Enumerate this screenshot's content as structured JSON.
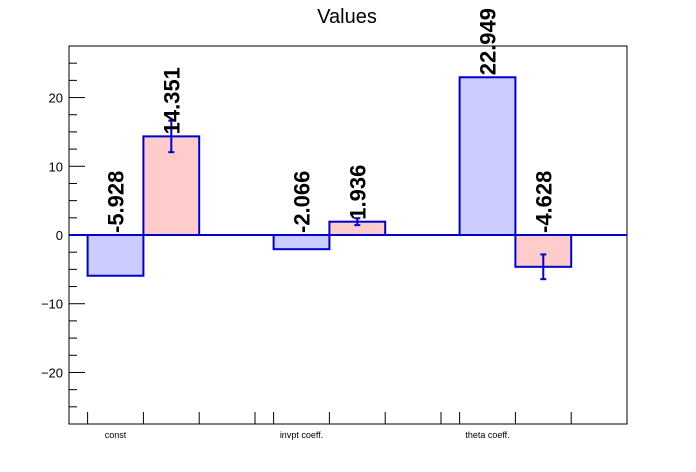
{
  "chart_data": {
    "type": "bar",
    "title": "Values",
    "xlabel": "",
    "ylabel": "",
    "categories": [
      "const",
      "invpt coeff.",
      "theta coeff."
    ],
    "series": [
      {
        "color": "#ccccff",
        "values": [
          -5.928,
          -2.066,
          22.949
        ],
        "labels": [
          "-5.928",
          "-2.066",
          "22.949"
        ],
        "errors": [
          0,
          0,
          0
        ]
      },
      {
        "color": "#ffcccc",
        "values": [
          14.351,
          1.936,
          -4.628
        ],
        "labels": [
          "14.351",
          "1.936",
          "-4.628"
        ],
        "errors": [
          2.3,
          0.5,
          1.8
        ]
      }
    ],
    "ylim": [
      -27.5,
      27.5
    ],
    "yticks": [
      -20,
      -10,
      0,
      10,
      20
    ],
    "ytick_labels": [
      "−20",
      "−10",
      "0",
      "10",
      "20"
    ],
    "grid": false,
    "outline_color": "#0000cc"
  }
}
